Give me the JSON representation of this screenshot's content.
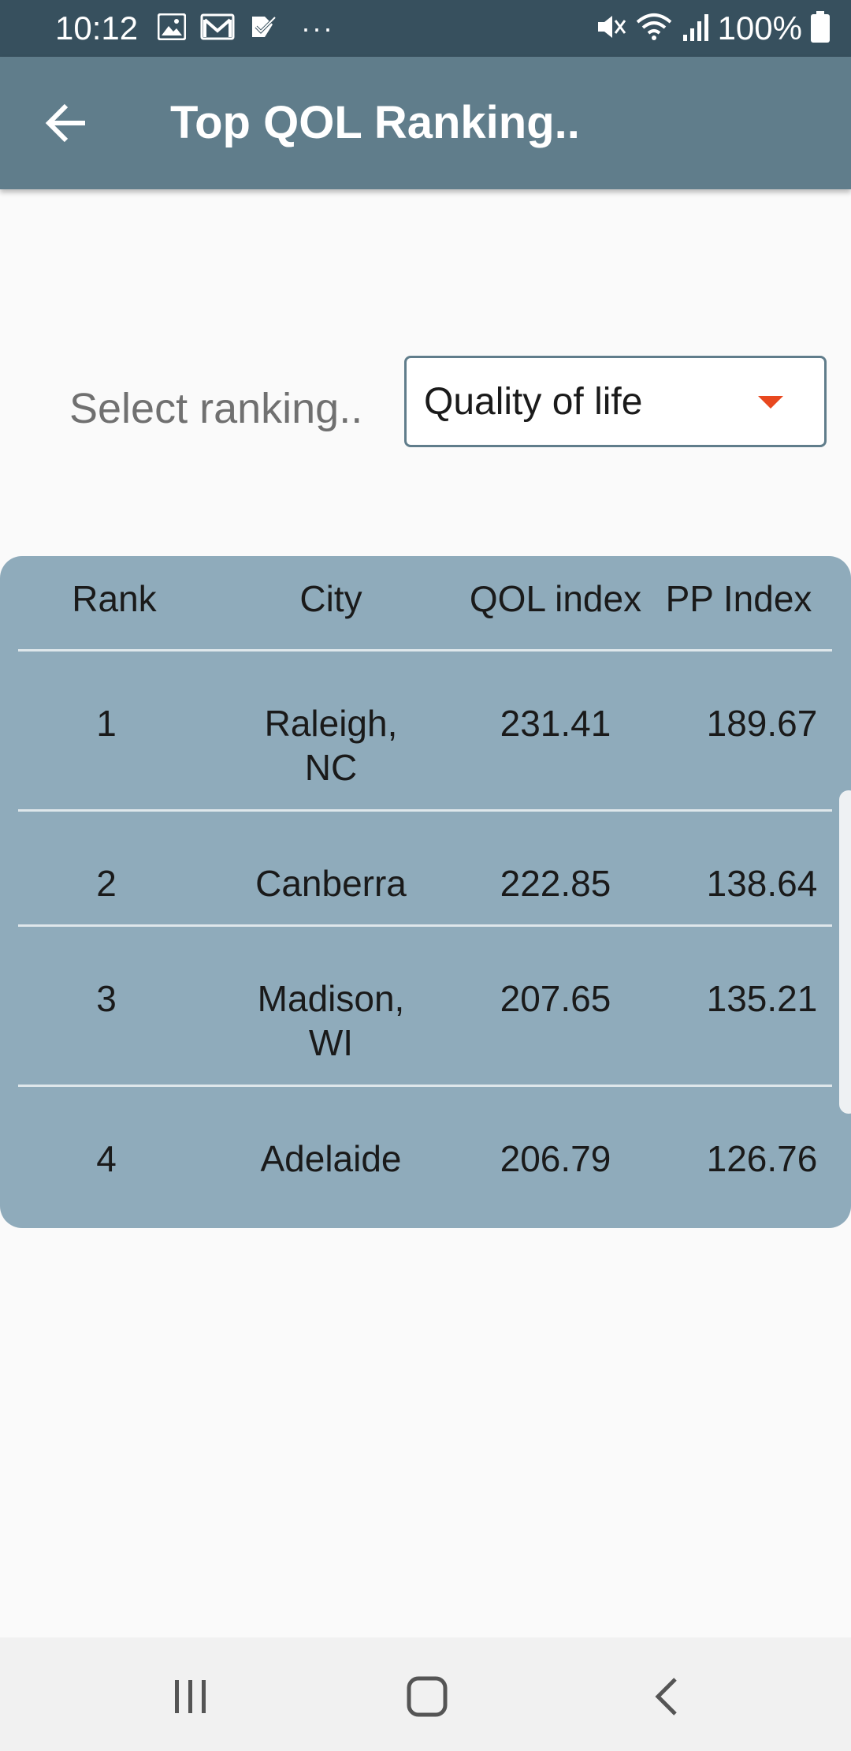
{
  "status_bar": {
    "time": "10:12",
    "battery_text": "100%",
    "left_icons": [
      "image-icon",
      "gmail-icon",
      "checkmark-app-icon",
      "more-dots-icon"
    ],
    "right_icons": [
      "mute-icon",
      "wifi-icon",
      "signal-icon",
      "battery-icon"
    ],
    "more_dots": "···"
  },
  "app_bar": {
    "title": "Top QOL Ranking..",
    "back_icon": "arrow-left-icon"
  },
  "selector": {
    "label": "Select ranking..",
    "value": "Quality of life",
    "arrow_color": "#e8481f"
  },
  "table": {
    "headers": {
      "rank": "Rank",
      "city": "City",
      "qol": "QOL index",
      "pp": "PP Index"
    },
    "rows": [
      {
        "rank": "1",
        "city_line1": "Raleigh,",
        "city_line2": "NC",
        "qol": "231.41",
        "pp": "189.67"
      },
      {
        "rank": "2",
        "city_line1": "Canberra",
        "city_line2": "",
        "qol": "222.85",
        "pp": "138.64"
      },
      {
        "rank": "3",
        "city_line1": "Madison,",
        "city_line2": "WI",
        "qol": "207.65",
        "pp": "135.21"
      },
      {
        "rank": "4",
        "city_line1": "Adelaide",
        "city_line2": "",
        "qol": "206.79",
        "pp": "126.76"
      }
    ]
  },
  "colors": {
    "status_bar": "#37505e",
    "app_bar": "#607d8b",
    "table_bg": "#8fabbb",
    "page_bg": "#fafafa"
  },
  "nav_bar": {
    "icons": [
      "recent-apps-icon",
      "home-icon",
      "back-nav-icon"
    ]
  }
}
